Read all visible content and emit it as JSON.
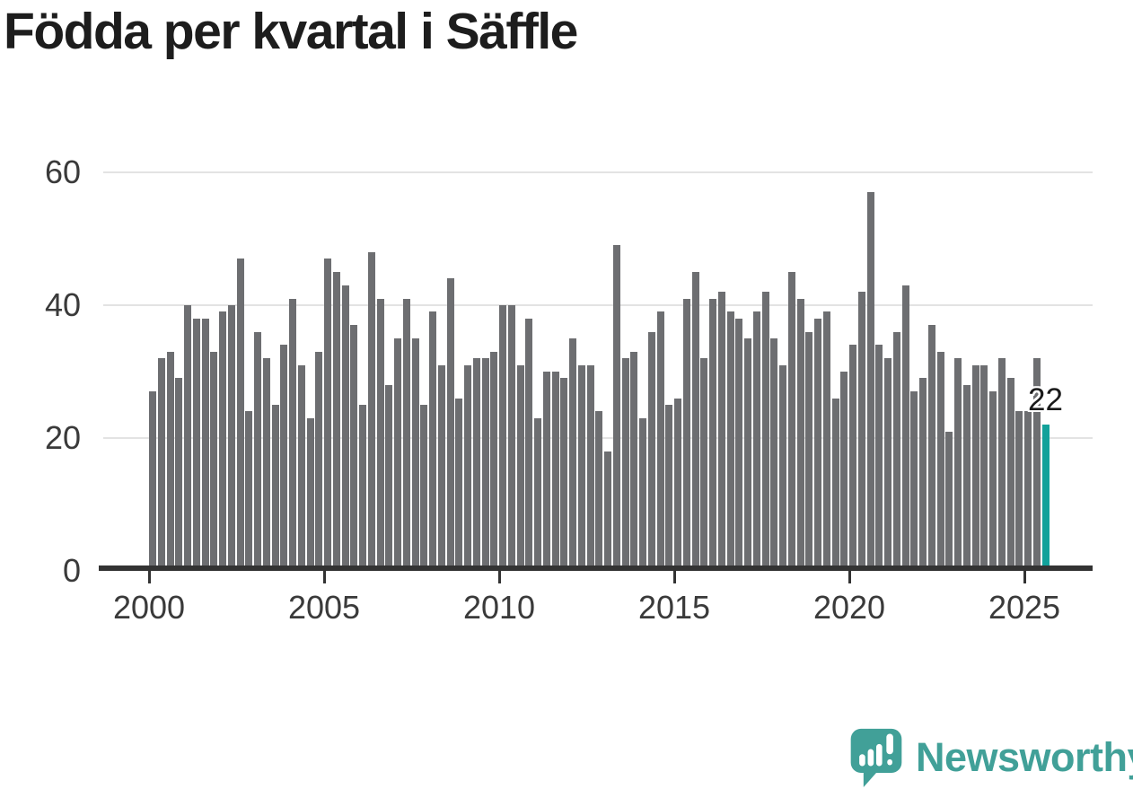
{
  "title": "Födda per kvartal i Säffle",
  "chart_data": {
    "type": "bar",
    "title": "Födda per kvartal i Säffle",
    "x_start": "2000-Q1",
    "x_end": "2025-Q3",
    "x_unit": "quarter",
    "x_tick_labels": [
      "2000",
      "2005",
      "2010",
      "2015",
      "2020",
      "2025"
    ],
    "y_ticks": [
      0,
      20,
      40,
      60
    ],
    "ylim": [
      0,
      60
    ],
    "grid": "horizontal",
    "legend": "none",
    "values": [
      27,
      32,
      33,
      29,
      40,
      38,
      38,
      33,
      39,
      40,
      47,
      24,
      36,
      32,
      25,
      34,
      41,
      31,
      23,
      33,
      47,
      45,
      43,
      37,
      25,
      48,
      41,
      28,
      35,
      41,
      35,
      25,
      39,
      31,
      44,
      26,
      31,
      32,
      32,
      33,
      40,
      40,
      31,
      38,
      23,
      30,
      30,
      29,
      35,
      31,
      31,
      24,
      18,
      49,
      32,
      33,
      23,
      36,
      39,
      25,
      26,
      41,
      45,
      32,
      41,
      42,
      39,
      38,
      35,
      39,
      42,
      35,
      31,
      45,
      41,
      36,
      38,
      39,
      26,
      30,
      34,
      42,
      57,
      34,
      32,
      36,
      43,
      27,
      29,
      37,
      33,
      21,
      32,
      28,
      31,
      31,
      27,
      32,
      29,
      24,
      24,
      32,
      22
    ],
    "highlight": {
      "index": 102,
      "period": "2025-Q3",
      "value": 22,
      "label": "22"
    }
  },
  "annotation": {
    "value_label": "22"
  },
  "branding": {
    "name": "Newsworthy",
    "icon": "newsworthy-logo-icon"
  },
  "colors": {
    "bar": "#6d6e71",
    "accent": "#12a19a",
    "logo": "#41a098",
    "title_text": "#1d1d1d",
    "axis_text": "#3a3a3a",
    "gridline": "#e3e3e3",
    "axis_line": "#333333",
    "background": "#ffffff"
  }
}
